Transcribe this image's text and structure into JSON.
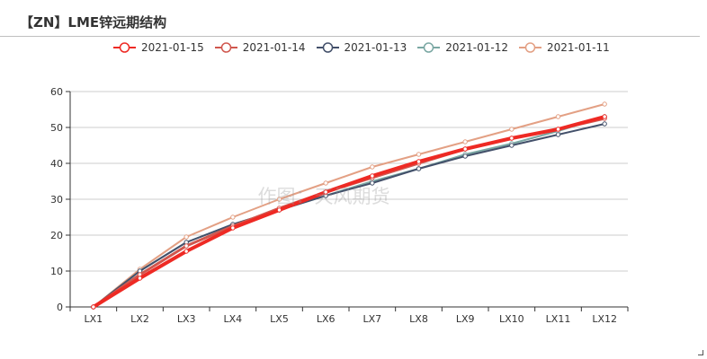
{
  "header": {
    "title": "【ZN】LME锌远期结构"
  },
  "watermark": "作图：天风期货",
  "chart_data": {
    "type": "line",
    "categories": [
      "LX1",
      "LX2",
      "LX3",
      "LX4",
      "LX5",
      "LX6",
      "LX7",
      "LX8",
      "LX9",
      "LX10",
      "LX11",
      "LX12"
    ],
    "ylim": [
      0,
      60
    ],
    "yticks": [
      0,
      10,
      20,
      30,
      40,
      50,
      60
    ],
    "grid": true,
    "legend_position": "top",
    "series": [
      {
        "name": "2021-01-15",
        "color": "#ee2a24",
        "values": [
          0,
          8,
          15.5,
          22,
          27,
          32,
          36.5,
          40.5,
          44,
          47,
          49.5,
          53
        ]
      },
      {
        "name": "2021-01-14",
        "color": "#d0574e",
        "values": [
          0,
          9,
          17,
          22.5,
          27.5,
          32,
          36,
          40,
          44,
          47,
          49.5,
          52.5
        ]
      },
      {
        "name": "2021-01-13",
        "color": "#43506a",
        "values": [
          0,
          10,
          18,
          23,
          27,
          31,
          34.5,
          38.5,
          42,
          45,
          48,
          51
        ]
      },
      {
        "name": "2021-01-12",
        "color": "#7aa7a3",
        "values": [
          0,
          10,
          18,
          23,
          27,
          31,
          35,
          38.5,
          42.5,
          45.5,
          49,
          53
        ]
      },
      {
        "name": "2021-01-11",
        "color": "#e3a084",
        "values": [
          0,
          10.5,
          19.5,
          25,
          30,
          34.5,
          39,
          42.5,
          46,
          49.5,
          53,
          56.5
        ]
      }
    ]
  }
}
